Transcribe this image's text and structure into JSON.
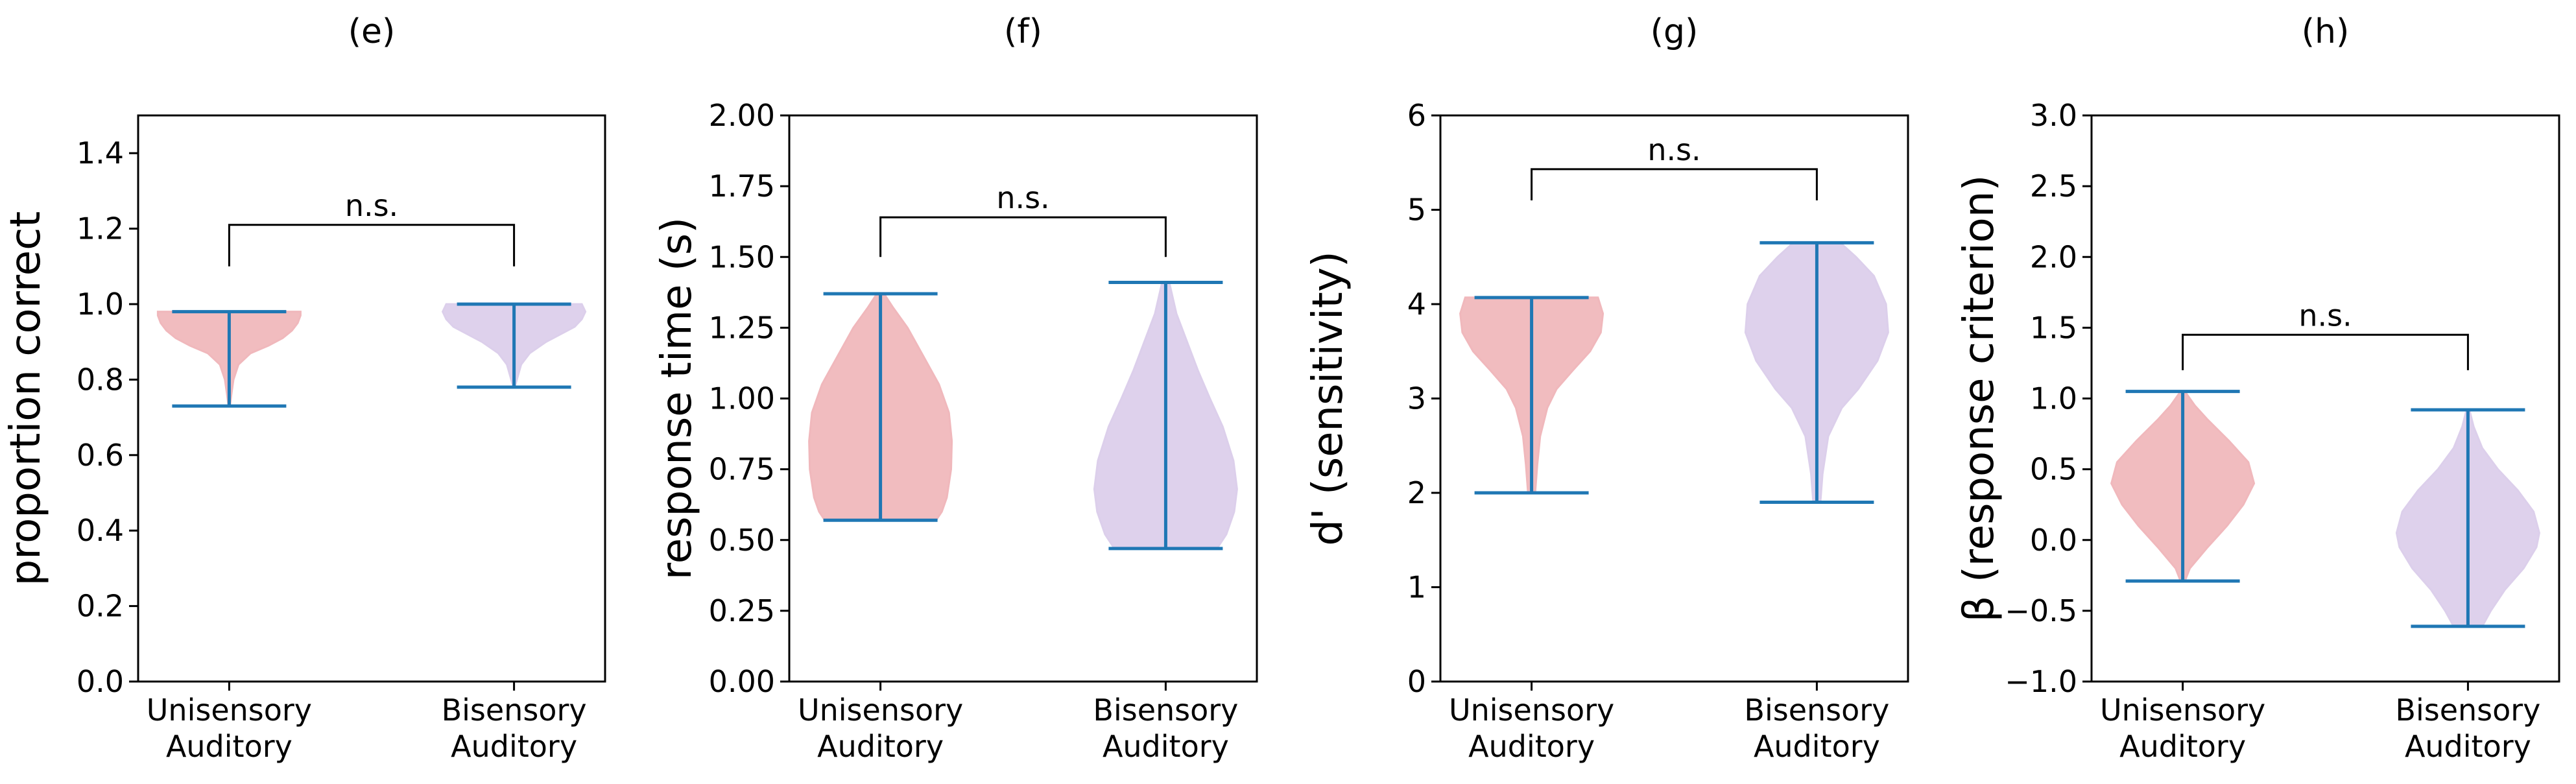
{
  "chart_data": [
    {
      "type": "violin",
      "title": "(e)",
      "ylabel": "proportion correct",
      "ylim": [
        0,
        1.5
      ],
      "yticks": [
        0.0,
        0.2,
        0.4,
        0.6,
        0.8,
        1.0,
        1.2,
        1.4
      ],
      "ytick_labels": [
        "0.0",
        "0.2",
        "0.4",
        "0.6",
        "0.8",
        "1.0",
        "1.2",
        "1.4"
      ],
      "categories": [
        "Unisensory Auditory",
        "Bisensory Auditory"
      ],
      "category_lines": [
        [
          "Unisensory",
          "Auditory"
        ],
        [
          "Bisensory",
          "Auditory"
        ]
      ],
      "series": [
        {
          "min": 0.73,
          "max": 0.98,
          "color": "#f0b8bc",
          "profile": [
            [
              0.73,
              0.01
            ],
            [
              0.76,
              0.03
            ],
            [
              0.8,
              0.06
            ],
            [
              0.84,
              0.13
            ],
            [
              0.87,
              0.3
            ],
            [
              0.89,
              0.55
            ],
            [
              0.91,
              0.75
            ],
            [
              0.93,
              0.88
            ],
            [
              0.95,
              0.96
            ],
            [
              0.97,
              1.0
            ],
            [
              0.98,
              1.0
            ]
          ]
        },
        {
          "min": 0.78,
          "max": 1.0,
          "color": "#dccfeb",
          "profile": [
            [
              0.78,
              0.01
            ],
            [
              0.8,
              0.04
            ],
            [
              0.84,
              0.1
            ],
            [
              0.87,
              0.22
            ],
            [
              0.9,
              0.45
            ],
            [
              0.92,
              0.65
            ],
            [
              0.94,
              0.85
            ],
            [
              0.96,
              0.95
            ],
            [
              0.98,
              1.0
            ],
            [
              1.0,
              0.95
            ]
          ]
        }
      ],
      "significance": {
        "label": "n.s.",
        "y": 1.21,
        "drop_to": [
          1.1,
          1.1
        ]
      }
    },
    {
      "type": "violin",
      "title": "(f)",
      "ylabel": "response time (s)",
      "ylim": [
        0,
        2.0
      ],
      "yticks": [
        0.0,
        0.25,
        0.5,
        0.75,
        1.0,
        1.25,
        1.5,
        1.75,
        2.0
      ],
      "ytick_labels": [
        "0.00",
        "0.25",
        "0.50",
        "0.75",
        "1.00",
        "1.25",
        "1.50",
        "1.75",
        "2.00"
      ],
      "categories": [
        "Unisensory Auditory",
        "Bisensory Auditory"
      ],
      "category_lines": [
        [
          "Unisensory",
          "Auditory"
        ],
        [
          "Bisensory",
          "Auditory"
        ]
      ],
      "series": [
        {
          "min": 0.57,
          "max": 1.37,
          "color": "#f0b8bc",
          "profile": [
            [
              0.57,
              0.78
            ],
            [
              0.6,
              0.86
            ],
            [
              0.65,
              0.93
            ],
            [
              0.75,
              0.99
            ],
            [
              0.85,
              1.0
            ],
            [
              0.95,
              0.96
            ],
            [
              1.05,
              0.82
            ],
            [
              1.15,
              0.6
            ],
            [
              1.25,
              0.38
            ],
            [
              1.32,
              0.18
            ],
            [
              1.37,
              0.05
            ]
          ]
        },
        {
          "min": 0.47,
          "max": 1.41,
          "color": "#dccfeb",
          "profile": [
            [
              0.47,
              0.72
            ],
            [
              0.52,
              0.85
            ],
            [
              0.6,
              0.96
            ],
            [
              0.68,
              1.0
            ],
            [
              0.78,
              0.95
            ],
            [
              0.9,
              0.8
            ],
            [
              1.0,
              0.62
            ],
            [
              1.1,
              0.45
            ],
            [
              1.2,
              0.3
            ],
            [
              1.3,
              0.15
            ],
            [
              1.41,
              0.05
            ]
          ]
        }
      ],
      "significance": {
        "label": "n.s.",
        "y": 1.64,
        "drop_to": [
          1.5,
          1.5
        ]
      }
    },
    {
      "type": "violin",
      "title": "(g)",
      "ylabel": "d' (sensitivity)",
      "ylim": [
        0,
        6
      ],
      "yticks": [
        0,
        1,
        2,
        3,
        4,
        5,
        6
      ],
      "ytick_labels": [
        "0",
        "1",
        "2",
        "3",
        "4",
        "5",
        "6"
      ],
      "categories": [
        "Unisensory Auditory",
        "Bisensory Auditory"
      ],
      "category_lines": [
        [
          "Unisensory",
          "Auditory"
        ],
        [
          "Bisensory",
          "Auditory"
        ]
      ],
      "series": [
        {
          "min": 2.0,
          "max": 4.07,
          "color": "#f0b8bc",
          "profile": [
            [
              2.0,
              0.05
            ],
            [
              2.3,
              0.08
            ],
            [
              2.6,
              0.12
            ],
            [
              2.9,
              0.22
            ],
            [
              3.1,
              0.35
            ],
            [
              3.3,
              0.58
            ],
            [
              3.5,
              0.82
            ],
            [
              3.7,
              0.97
            ],
            [
              3.9,
              1.0
            ],
            [
              4.07,
              0.93
            ]
          ]
        },
        {
          "min": 1.9,
          "max": 4.65,
          "color": "#dccfeb",
          "profile": [
            [
              1.9,
              0.05
            ],
            [
              2.2,
              0.08
            ],
            [
              2.6,
              0.16
            ],
            [
              2.9,
              0.35
            ],
            [
              3.1,
              0.58
            ],
            [
              3.4,
              0.85
            ],
            [
              3.7,
              1.0
            ],
            [
              4.0,
              0.97
            ],
            [
              4.3,
              0.8
            ],
            [
              4.5,
              0.55
            ],
            [
              4.65,
              0.33
            ]
          ]
        }
      ],
      "significance": {
        "label": "n.s.",
        "y": 5.43,
        "drop_to": [
          5.1,
          5.1
        ]
      }
    },
    {
      "type": "violin",
      "title": "(h)",
      "ylabel": "β (response criterion)",
      "ylim": [
        -1.0,
        3.0
      ],
      "yticks": [
        -1.0,
        -0.5,
        0.0,
        0.5,
        1.0,
        1.5,
        2.0,
        2.5,
        3.0
      ],
      "ytick_labels": [
        "−1.0",
        "−0.5",
        "0.0",
        "0.5",
        "1.0",
        "1.5",
        "2.0",
        "2.5",
        "3.0"
      ],
      "categories": [
        "Unisensory Auditory",
        "Bisensory Auditory"
      ],
      "category_lines": [
        [
          "Unisensory",
          "Auditory"
        ],
        [
          "Bisensory",
          "Auditory"
        ]
      ],
      "series": [
        {
          "min": -0.29,
          "max": 1.05,
          "color": "#f0b8bc",
          "profile": [
            [
              -0.29,
              0.03
            ],
            [
              -0.2,
              0.1
            ],
            [
              -0.05,
              0.35
            ],
            [
              0.1,
              0.62
            ],
            [
              0.25,
              0.85
            ],
            [
              0.4,
              1.0
            ],
            [
              0.55,
              0.92
            ],
            [
              0.7,
              0.65
            ],
            [
              0.85,
              0.35
            ],
            [
              0.95,
              0.17
            ],
            [
              1.05,
              0.03
            ]
          ]
        },
        {
          "min": -0.61,
          "max": 0.92,
          "color": "#dccfeb",
          "profile": [
            [
              -0.61,
              0.2
            ],
            [
              -0.5,
              0.32
            ],
            [
              -0.35,
              0.52
            ],
            [
              -0.2,
              0.78
            ],
            [
              -0.05,
              0.96
            ],
            [
              0.05,
              1.0
            ],
            [
              0.2,
              0.92
            ],
            [
              0.35,
              0.7
            ],
            [
              0.5,
              0.42
            ],
            [
              0.65,
              0.2
            ],
            [
              0.8,
              0.08
            ],
            [
              0.92,
              0.02
            ]
          ]
        }
      ],
      "significance": {
        "label": "n.s.",
        "y": 1.45,
        "drop_to": [
          1.2,
          1.2
        ]
      }
    }
  ]
}
